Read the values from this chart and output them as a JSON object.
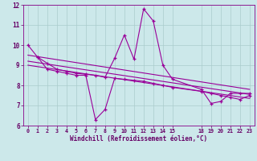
{
  "xlabel": "Windchill (Refroidissement éolien,°C)",
  "bg_color": "#cce8ea",
  "line_color": "#990099",
  "grid_color": "#aacccc",
  "xlim": [
    -0.5,
    23.5
  ],
  "ylim": [
    6,
    12
  ],
  "yticks": [
    6,
    7,
    8,
    9,
    10,
    11,
    12
  ],
  "xticks": [
    0,
    1,
    2,
    3,
    4,
    5,
    6,
    7,
    8,
    9,
    10,
    11,
    12,
    13,
    14,
    15,
    18,
    19,
    20,
    21,
    22,
    23
  ],
  "series1_x": [
    0,
    1,
    2,
    3,
    4,
    5,
    6,
    7,
    8,
    9,
    10,
    11,
    12,
    13,
    14,
    15,
    18,
    19,
    20,
    21,
    22,
    23
  ],
  "series1_y": [
    10.0,
    9.4,
    9.1,
    8.8,
    8.7,
    8.6,
    8.55,
    8.5,
    8.4,
    9.35,
    10.5,
    9.3,
    11.8,
    11.2,
    9.0,
    8.3,
    7.8,
    7.1,
    7.2,
    7.6,
    7.6,
    7.6
  ],
  "series2_x": [
    1,
    2,
    3,
    4,
    5,
    6,
    7,
    8,
    9,
    10,
    11,
    12,
    13,
    14,
    15,
    18,
    19,
    20,
    21,
    22,
    23
  ],
  "series2_y": [
    9.4,
    8.8,
    8.7,
    8.6,
    8.5,
    8.5,
    6.3,
    6.8,
    8.35,
    8.3,
    8.25,
    8.2,
    8.1,
    8.0,
    7.9,
    7.7,
    7.6,
    7.5,
    7.4,
    7.3,
    7.5
  ],
  "regression_lines": [
    {
      "x": [
        0,
        23
      ],
      "y": [
        9.5,
        7.8
      ]
    },
    {
      "x": [
        0,
        23
      ],
      "y": [
        9.2,
        7.55
      ]
    },
    {
      "x": [
        0,
        23
      ],
      "y": [
        9.0,
        7.35
      ]
    }
  ]
}
